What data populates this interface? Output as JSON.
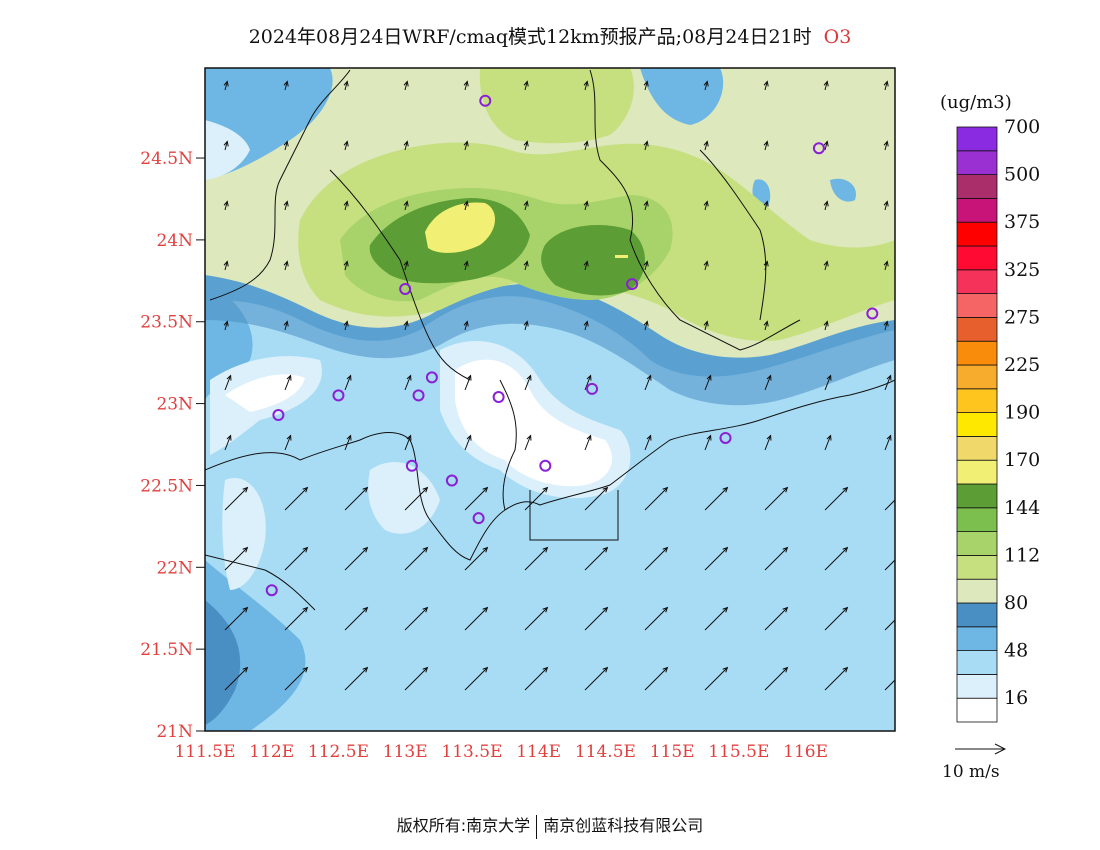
{
  "title": {
    "text": "2024年08月24日WRF/cmaq模式12km预报产品;08月24日21时",
    "species": "O3"
  },
  "axes": {
    "lat_ticks": [
      "21N",
      "21.5N",
      "22N",
      "22.5N",
      "23N",
      "23.5N",
      "24N",
      "24.5N"
    ],
    "lat_values": [
      21,
      21.5,
      22,
      22.5,
      23,
      23.5,
      24,
      24.5
    ],
    "lon_ticks": [
      "111.5E",
      "112E",
      "112.5E",
      "113E",
      "113.5E",
      "114E",
      "114.5E",
      "115E",
      "115.5E",
      "116E"
    ],
    "lon_values": [
      111.5,
      112,
      112.5,
      113,
      113.5,
      114,
      114.5,
      115,
      115.5,
      116
    ],
    "lat_range": [
      21,
      25.05
    ],
    "lon_range": [
      111.5,
      116.67
    ]
  },
  "colorbar": {
    "unit": "(ug/m3)",
    "labels": [
      "16",
      "48",
      "80",
      "112",
      "144",
      "170",
      "190",
      "225",
      "275",
      "325",
      "375",
      "500",
      "700"
    ],
    "colors": [
      "#ffffff",
      "#dcf0fb",
      "#a8dcf5",
      "#6eb6e3",
      "#4a8fc4",
      "#dde8bd",
      "#c7e07f",
      "#a8d36b",
      "#7cbf4e",
      "#5c9e35",
      "#f2f074",
      "#f0d86a",
      "#ffe800",
      "#fdc51e",
      "#f7ac2e",
      "#f98c0b",
      "#e85f2e",
      "#f56565",
      "#f5325a",
      "#ff0a32",
      "#ff0000",
      "#c81478",
      "#aa2e69",
      "#9b30d2",
      "#8a2be2"
    ]
  },
  "wind_legend": {
    "label": "10 m/s"
  },
  "stations": [
    {
      "lon": 113.6,
      "lat": 24.85
    },
    {
      "lon": 116.1,
      "lat": 24.56
    },
    {
      "lon": 113.0,
      "lat": 23.7
    },
    {
      "lon": 114.7,
      "lat": 23.73
    },
    {
      "lon": 116.5,
      "lat": 23.55
    },
    {
      "lon": 112.5,
      "lat": 23.05
    },
    {
      "lon": 113.1,
      "lat": 23.05
    },
    {
      "lon": 113.2,
      "lat": 23.16
    },
    {
      "lon": 113.7,
      "lat": 23.04
    },
    {
      "lon": 114.4,
      "lat": 23.09
    },
    {
      "lon": 112.05,
      "lat": 22.93
    },
    {
      "lon": 115.4,
      "lat": 22.79
    },
    {
      "lon": 113.05,
      "lat": 22.62
    },
    {
      "lon": 113.35,
      "lat": 22.53
    },
    {
      "lon": 114.05,
      "lat": 22.62
    },
    {
      "lon": 113.55,
      "lat": 22.3
    },
    {
      "lon": 112.0,
      "lat": 21.86
    }
  ],
  "footer": {
    "left": "版权所有:南京大学",
    "right": "南京创蓝科技有限公司"
  }
}
